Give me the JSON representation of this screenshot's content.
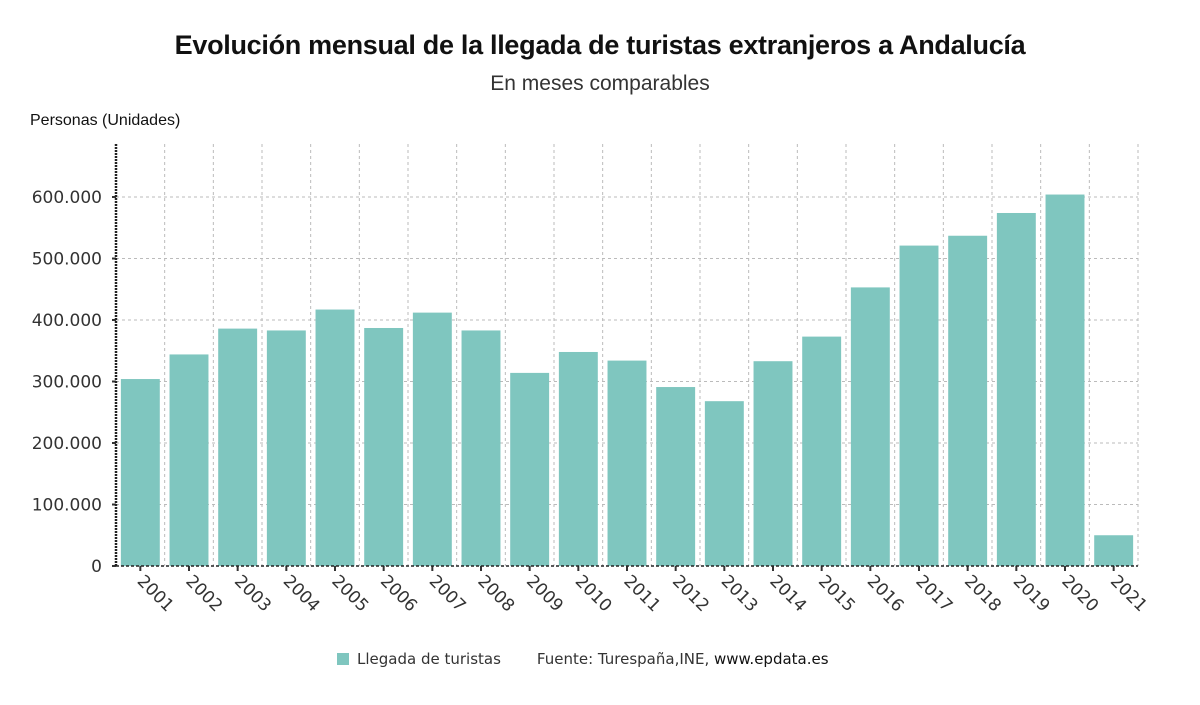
{
  "chart_data": {
    "type": "bar",
    "title": "Evolución mensual de la llegada de turistas extranjeros a Andalucía",
    "subtitle": "En meses comparables",
    "ylabel": "Personas (Unidades)",
    "xlabel": "",
    "categories": [
      "2001",
      "2002",
      "2003",
      "2004",
      "2005",
      "2006",
      "2007",
      "2008",
      "2009",
      "2010",
      "2011",
      "2012",
      "2013",
      "2014",
      "2015",
      "2016",
      "2017",
      "2018",
      "2019",
      "2020",
      "2021"
    ],
    "series": [
      {
        "name": "Llegada de turistas",
        "color": "#7fc6bf",
        "values": [
          304000,
          344000,
          386000,
          383000,
          417000,
          387000,
          412000,
          383000,
          314000,
          348000,
          334000,
          291000,
          268000,
          333000,
          373000,
          453000,
          521000,
          537000,
          574000,
          604000,
          50000
        ]
      }
    ],
    "ylim": [
      0,
      600000
    ],
    "yticks": [
      0,
      100000,
      200000,
      300000,
      400000,
      500000,
      600000
    ],
    "ytick_labels": [
      "0",
      "100.000",
      "200.000",
      "300.000",
      "400.000",
      "500.000",
      "600.000"
    ],
    "grid": true,
    "legend": "bottom-center"
  },
  "footer": {
    "legend_label": "Llegada de turistas",
    "source_prefix": "Fuente: Turespaña,INE, ",
    "source_url": "www.epdata.es"
  }
}
